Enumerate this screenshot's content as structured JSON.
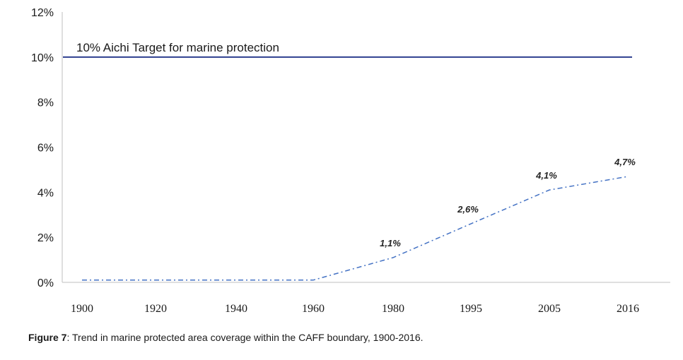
{
  "chart_data": {
    "type": "line",
    "categories": [
      "1900",
      "1920",
      "1940",
      "1960",
      "1980",
      "1995",
      "2005",
      "2016"
    ],
    "series": [
      {
        "name": "Marine protected area coverage",
        "values": [
          0.1,
          0.1,
          0.1,
          0.1,
          1.1,
          2.6,
          4.1,
          4.7
        ],
        "style": "dash-dot",
        "color": "#4472c4"
      }
    ],
    "data_labels": [
      {
        "index": 4,
        "text": "1,1%"
      },
      {
        "index": 5,
        "text": "2,6%"
      },
      {
        "index": 6,
        "text": "4,1%"
      },
      {
        "index": 7,
        "text": "4,7%"
      }
    ],
    "target_line": {
      "value": 10,
      "label": "10% Aichi Target for marine protection",
      "color": "#2e3f8f"
    },
    "y_ticks": [
      "0%",
      "2%",
      "4%",
      "6%",
      "8%",
      "10%",
      "12%"
    ],
    "ylim": [
      0,
      12
    ],
    "xlabel": "",
    "ylabel": "",
    "axis_color": "#bfbfbf"
  },
  "caption": {
    "label": "Figure 7",
    "text": ": Trend in marine protected area coverage within the CAFF boundary, 1900-2016."
  }
}
